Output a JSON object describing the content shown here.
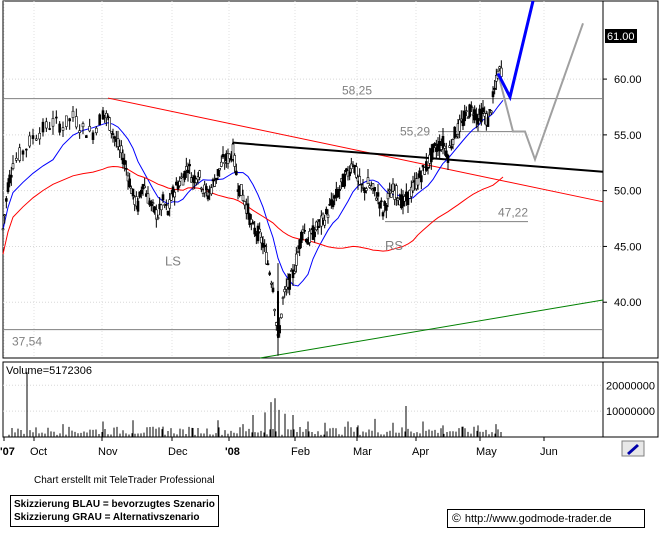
{
  "chart_data": {
    "type": "candlestick",
    "axes": {
      "price_ticks": [
        "60.00",
        "55.00",
        "50.00",
        "45.00",
        "40.00"
      ],
      "price_range": [
        35.0,
        67.0
      ],
      "volume_ticks": [
        "20000000",
        "10000000"
      ],
      "volume_range": [
        0,
        29000000
      ],
      "x_labels": [
        "'07",
        "Oct",
        "Nov",
        "Dec",
        "'08",
        "Feb",
        "Mar",
        "Apr",
        "May",
        "Jun"
      ],
      "grid": true
    },
    "last_price": "61.00",
    "volume_label": "Volume=5172306",
    "levels": [
      {
        "label": "58,25",
        "value": 58.25
      },
      {
        "label": "55,29",
        "value": 55.29
      },
      {
        "label": "47,22",
        "value": 47.22
      },
      {
        "label": "37,54",
        "value": 37.54
      }
    ],
    "pattern_labels": [
      "LS",
      "RS"
    ],
    "series": [
      {
        "color": "#0000ff",
        "style": "moving average (short)"
      },
      {
        "color": "#ff0000",
        "style": "moving average (long)"
      },
      {
        "color": "#000000",
        "style": "neckline"
      },
      {
        "color": "#ff0000",
        "style": "downtrend line"
      },
      {
        "color": "#008000",
        "style": "uptrend line"
      }
    ],
    "close_trace": [
      [
        0,
        46.5
      ],
      [
        5,
        50.5
      ],
      [
        10,
        52.5
      ],
      [
        20,
        53.5
      ],
      [
        30,
        54.8
      ],
      [
        40,
        55.5
      ],
      [
        50,
        56.1
      ],
      [
        60,
        55.8
      ],
      [
        70,
        56.6
      ],
      [
        80,
        55.5
      ],
      [
        90,
        55.2
      ],
      [
        100,
        57.0
      ],
      [
        105,
        56.4
      ],
      [
        110,
        55.2
      ],
      [
        115,
        54.0
      ],
      [
        120,
        53.0
      ],
      [
        125,
        51.5
      ],
      [
        130,
        49.5
      ],
      [
        135,
        48.6
      ],
      [
        140,
        50.8
      ],
      [
        145,
        49.4
      ],
      [
        150,
        48.3
      ],
      [
        155,
        47.8
      ],
      [
        160,
        49.0
      ],
      [
        165,
        48.0
      ],
      [
        170,
        49.8
      ],
      [
        175,
        50.6
      ],
      [
        180,
        51.2
      ],
      [
        185,
        52.3
      ],
      [
        190,
        51.0
      ],
      [
        195,
        51.6
      ],
      [
        200,
        50.3
      ],
      [
        205,
        49.6
      ],
      [
        210,
        50.6
      ],
      [
        215,
        51.6
      ],
      [
        220,
        52.6
      ],
      [
        225,
        52.9
      ],
      [
        230,
        53.5
      ],
      [
        235,
        50.6
      ],
      [
        240,
        49.5
      ],
      [
        245,
        48.2
      ],
      [
        250,
        46.5
      ],
      [
        255,
        46.2
      ],
      [
        260,
        45.2
      ],
      [
        265,
        43.5
      ],
      [
        270,
        41.5
      ],
      [
        275,
        36.5
      ],
      [
        280,
        40.2
      ],
      [
        285,
        41.5
      ],
      [
        290,
        42.5
      ],
      [
        295,
        44.5
      ],
      [
        300,
        46.8
      ],
      [
        305,
        45.5
      ],
      [
        310,
        46.2
      ],
      [
        315,
        46.8
      ],
      [
        320,
        47.3
      ],
      [
        325,
        48.1
      ],
      [
        330,
        49.0
      ],
      [
        335,
        49.8
      ],
      [
        340,
        50.8
      ],
      [
        345,
        51.6
      ],
      [
        350,
        52.7
      ],
      [
        355,
        50.9
      ],
      [
        360,
        50.0
      ],
      [
        365,
        50.6
      ],
      [
        370,
        50.0
      ],
      [
        375,
        49.5
      ],
      [
        380,
        48.1
      ],
      [
        385,
        49.3
      ],
      [
        390,
        50.0
      ],
      [
        395,
        49.7
      ],
      [
        400,
        48.8
      ],
      [
        405,
        49.4
      ],
      [
        410,
        50.2
      ],
      [
        415,
        51.0
      ],
      [
        420,
        51.7
      ],
      [
        425,
        52.4
      ],
      [
        430,
        53.5
      ],
      [
        435,
        54.0
      ],
      [
        440,
        54.3
      ],
      [
        445,
        53.2
      ],
      [
        450,
        54.8
      ],
      [
        455,
        55.5
      ],
      [
        460,
        56.2
      ],
      [
        465,
        57.1
      ],
      [
        470,
        57.3
      ],
      [
        475,
        56.5
      ],
      [
        480,
        57.0
      ],
      [
        485,
        56.2
      ],
      [
        490,
        58.2
      ],
      [
        495,
        60.5
      ],
      [
        500,
        61.0
      ]
    ],
    "volume_bars": [
      [
        24,
        25000000
      ],
      [
        60,
        5000000
      ],
      [
        100,
        6000000
      ],
      [
        130,
        6500000
      ],
      [
        160,
        4000000
      ],
      [
        190,
        3500000
      ],
      [
        215,
        6500000
      ],
      [
        240,
        5000000
      ],
      [
        250,
        8500000
      ],
      [
        262,
        9500000
      ],
      [
        268,
        13500000
      ],
      [
        272,
        15000000
      ],
      [
        276,
        10500000
      ],
      [
        282,
        9000000
      ],
      [
        290,
        8500000
      ],
      [
        305,
        6000000
      ],
      [
        322,
        5500000
      ],
      [
        345,
        6000000
      ],
      [
        355,
        4500000
      ],
      [
        372,
        7000000
      ],
      [
        390,
        5500000
      ],
      [
        403,
        12000000
      ],
      [
        420,
        6000000
      ],
      [
        440,
        4500000
      ],
      [
        460,
        4000000
      ],
      [
        475,
        4500000
      ],
      [
        493,
        5000000
      ]
    ],
    "scenarios": {
      "blue": {
        "path": [
          [
            495,
            60.5
          ],
          [
            507,
            58.4
          ],
          [
            530,
            67.0
          ]
        ],
        "color": "#0000ff"
      },
      "grey": {
        "path": [
          [
            495,
            60.5
          ],
          [
            510,
            55.3
          ],
          [
            522,
            55.3
          ],
          [
            532,
            52.8
          ],
          [
            580,
            65.0
          ]
        ],
        "color": "#a0a0a0"
      }
    }
  },
  "credit": "Chart erstellt mit TeleTrader Professional",
  "legend": {
    "blue": "Skizzierung BLAU = bevorzugtes Szenario",
    "grey": "Skizzierung GRAU = Alternativszenario"
  },
  "url": "http://www.godmode-trader.de",
  "copyright_symbol": "©"
}
